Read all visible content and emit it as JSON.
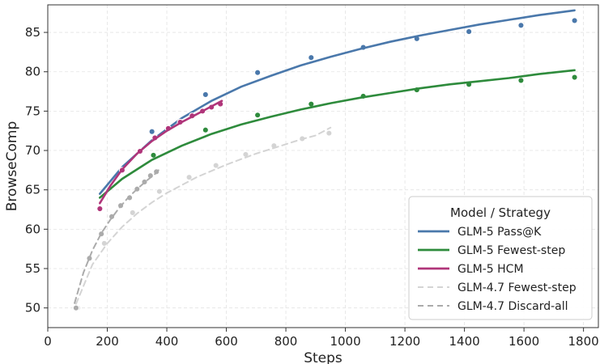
{
  "chart_data": {
    "type": "scatter",
    "title": "",
    "xlabel": "Steps",
    "ylabel": "BrowseComp",
    "xlim": [
      0,
      1850
    ],
    "ylim": [
      47.5,
      88.5
    ],
    "xticks": [
      0,
      200,
      400,
      600,
      800,
      1000,
      1200,
      1400,
      1600,
      1800
    ],
    "yticks": [
      50,
      55,
      60,
      65,
      70,
      75,
      80,
      85
    ],
    "grid": true,
    "legend": {
      "title": "Model / Strategy",
      "position": "lower-right"
    },
    "series": [
      {
        "key": "glm47-fewest",
        "name": "GLM-4.7 Fewest-step",
        "color": "#d4d4d4",
        "dashed": true,
        "points": [
          [
            100,
            50
          ],
          [
            190,
            58.2
          ],
          [
            285,
            62.1
          ],
          [
            375,
            64.8
          ],
          [
            475,
            66.6
          ],
          [
            565,
            68.1
          ],
          [
            665,
            69.5
          ],
          [
            760,
            70.6
          ],
          [
            855,
            71.5
          ],
          [
            945,
            72.2
          ]
        ],
        "fit": [
          [
            95,
            50.5
          ],
          [
            150,
            55.5
          ],
          [
            200,
            58.2
          ],
          [
            250,
            60.3
          ],
          [
            300,
            62
          ],
          [
            350,
            63.4
          ],
          [
            400,
            64.6
          ],
          [
            450,
            65.6
          ],
          [
            500,
            66.6
          ],
          [
            550,
            67.4
          ],
          [
            600,
            68.2
          ],
          [
            650,
            68.9
          ],
          [
            700,
            69.6
          ],
          [
            750,
            70.2
          ],
          [
            800,
            70.8
          ],
          [
            850,
            71.4
          ],
          [
            900,
            71.9
          ],
          [
            950,
            72.9
          ]
        ]
      },
      {
        "key": "glm47-discard",
        "name": "GLM-4.7 Discard-all",
        "color": "#ababab",
        "dashed": true,
        "points": [
          [
            95,
            50
          ],
          [
            140,
            56.3
          ],
          [
            180,
            59.4
          ],
          [
            215,
            61.6
          ],
          [
            245,
            63
          ],
          [
            275,
            64
          ],
          [
            300,
            65.1
          ],
          [
            325,
            66
          ],
          [
            345,
            66.8
          ],
          [
            365,
            67.3
          ]
        ],
        "fit": [
          [
            90,
            50.6
          ],
          [
            120,
            54.5
          ],
          [
            150,
            57.3
          ],
          [
            180,
            59.5
          ],
          [
            210,
            61.2
          ],
          [
            240,
            62.7
          ],
          [
            270,
            64
          ],
          [
            300,
            65.1
          ],
          [
            330,
            66.1
          ],
          [
            360,
            67
          ],
          [
            372,
            67.5
          ]
        ]
      },
      {
        "key": "glm5-passk",
        "name": "GLM-5 Pass@K",
        "color": "#4a78ab",
        "dashed": false,
        "points": [
          [
            175,
            62.6
          ],
          [
            350,
            72.4
          ],
          [
            530,
            77.1
          ],
          [
            705,
            79.9
          ],
          [
            885,
            81.8
          ],
          [
            1060,
            83.1
          ],
          [
            1240,
            84.2
          ],
          [
            1415,
            85.1
          ],
          [
            1590,
            85.9
          ],
          [
            1770,
            86.5
          ]
        ],
        "fit": [
          [
            175,
            64.5
          ],
          [
            250,
            67.9
          ],
          [
            350,
            71.3
          ],
          [
            450,
            74.1
          ],
          [
            550,
            76.3
          ],
          [
            650,
            78.1
          ],
          [
            750,
            79.5
          ],
          [
            850,
            80.8
          ],
          [
            950,
            81.9
          ],
          [
            1050,
            82.9
          ],
          [
            1150,
            83.8
          ],
          [
            1250,
            84.6
          ],
          [
            1350,
            85.3
          ],
          [
            1450,
            86
          ],
          [
            1550,
            86.6
          ],
          [
            1650,
            87.2
          ],
          [
            1770,
            87.8
          ]
        ]
      },
      {
        "key": "glm5-fewest",
        "name": "GLM-5 Fewest-step",
        "color": "#2e8b3c",
        "dashed": false,
        "points": [
          [
            175,
            62.6
          ],
          [
            355,
            69.4
          ],
          [
            530,
            72.6
          ],
          [
            705,
            74.5
          ],
          [
            885,
            75.9
          ],
          [
            1060,
            76.9
          ],
          [
            1240,
            77.7
          ],
          [
            1415,
            78.4
          ],
          [
            1590,
            78.9
          ],
          [
            1770,
            79.3
          ]
        ],
        "fit": [
          [
            175,
            64
          ],
          [
            250,
            66.4
          ],
          [
            350,
            68.8
          ],
          [
            450,
            70.6
          ],
          [
            550,
            72.1
          ],
          [
            650,
            73.3
          ],
          [
            750,
            74.3
          ],
          [
            850,
            75.2
          ],
          [
            950,
            76
          ],
          [
            1050,
            76.7
          ],
          [
            1150,
            77.3
          ],
          [
            1250,
            77.9
          ],
          [
            1350,
            78.4
          ],
          [
            1450,
            78.8
          ],
          [
            1550,
            79.2
          ],
          [
            1650,
            79.7
          ],
          [
            1770,
            80.2
          ]
        ]
      },
      {
        "key": "glm5-hcm",
        "name": "GLM-5 HCM",
        "color": "#b0357a",
        "dashed": false,
        "points": [
          [
            175,
            62.6
          ],
          [
            250,
            67.5
          ],
          [
            310,
            69.9
          ],
          [
            360,
            71.6
          ],
          [
            405,
            72.8
          ],
          [
            445,
            73.6
          ],
          [
            485,
            74.4
          ],
          [
            520,
            75
          ],
          [
            550,
            75.5
          ],
          [
            580,
            75.9
          ]
        ],
        "fit": [
          [
            175,
            63.3
          ],
          [
            210,
            65.5
          ],
          [
            250,
            67.6
          ],
          [
            300,
            69.6
          ],
          [
            350,
            71.2
          ],
          [
            400,
            72.5
          ],
          [
            450,
            73.6
          ],
          [
            500,
            74.6
          ],
          [
            550,
            75.6
          ],
          [
            585,
            76.3
          ]
        ]
      }
    ],
    "legend_order": [
      "glm5-passk",
      "glm5-fewest",
      "glm5-hcm",
      "glm47-fewest",
      "glm47-discard"
    ]
  }
}
